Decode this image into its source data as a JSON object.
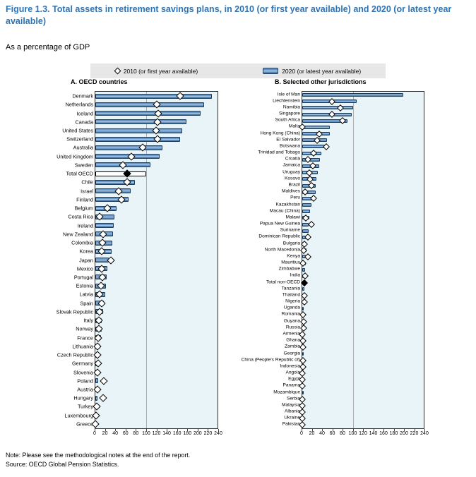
{
  "figure": {
    "title": "Figure 1.3. Total assets in retirement savings plans, in 2010 (or first year available) and 2020 (or latest year available)",
    "subtitle": "As a percentage of GDP",
    "note": "Note: Please see the methodological notes at the end of the report.",
    "source": "Source: OECD Global Pension Statistics."
  },
  "legend": {
    "items": [
      {
        "marker": "diamond",
        "label": "2010 (or first year available)"
      },
      {
        "marker": "bar",
        "label": "2020 (or latest year available)"
      }
    ]
  },
  "colors": {
    "title_blue": "#2E74B5",
    "bar_fill": "#5C8CC0",
    "bar_highlight": "#A8C7E3",
    "bar_border": "#1E3D5C",
    "total_bar_fill": "#FFFFFF",
    "diamond_fill": "#FFFFFF",
    "diamond_total_fill": "#000000",
    "plot_background": "#E9F4F9",
    "legend_background": "#E7E7E7",
    "gridline": "#ADADAD"
  },
  "chart_data": [
    {
      "type": "bar",
      "orientation": "horizontal",
      "title": "A. OECD countries",
      "xlabel": "",
      "xlim": [
        0,
        240
      ],
      "xticks": [
        0,
        20,
        40,
        60,
        80,
        100,
        120,
        140,
        160,
        180,
        200,
        220,
        240
      ],
      "gridline_x": 100,
      "series": [
        {
          "name": "2020 (or latest year available)",
          "style": "bar"
        },
        {
          "name": "2010 (or first year available)",
          "style": "diamond"
        }
      ],
      "rows": [
        {
          "label": "Denmark",
          "bar": 229,
          "diamond": 167
        },
        {
          "label": "Netherlands",
          "bar": 213,
          "diamond": 120
        },
        {
          "label": "Iceland",
          "bar": 207,
          "diamond": 123
        },
        {
          "label": "Canada",
          "bar": 179,
          "diamond": 122
        },
        {
          "label": "United States",
          "bar": 170,
          "diamond": 119
        },
        {
          "label": "Switzerland",
          "bar": 167,
          "diamond": 122
        },
        {
          "label": "Australia",
          "bar": 132,
          "diamond": 93
        },
        {
          "label": "United Kingdom",
          "bar": 126,
          "diamond": 71
        },
        {
          "label": "Sweden",
          "bar": 108,
          "diamond": 54
        },
        {
          "label": "Total OECD",
          "bar": 100,
          "diamond": 63,
          "total": true
        },
        {
          "label": "Chile",
          "bar": 77,
          "diamond": 62
        },
        {
          "label": "Israel",
          "bar": 70,
          "diamond": 46
        },
        {
          "label": "Finland",
          "bar": 65,
          "diamond": 52
        },
        {
          "label": "Belgium",
          "bar": 42,
          "diamond": 24
        },
        {
          "label": "Costa Rica",
          "bar": 37,
          "diamond": 8
        },
        {
          "label": "Ireland",
          "bar": 36,
          "diamond": null
        },
        {
          "label": "New Zealand",
          "bar": 34.5,
          "diamond": 15
        },
        {
          "label": "Colombia",
          "bar": 33,
          "diamond": 14
        },
        {
          "label": "Korea",
          "bar": 32,
          "diamond": 12
        },
        {
          "label": "Japan",
          "bar": 27,
          "diamond": 30
        },
        {
          "label": "Mexico",
          "bar": 23,
          "diamond": 13
        },
        {
          "label": "Portugal",
          "bar": 22,
          "diamond": 14
        },
        {
          "label": "Estonia",
          "bar": 21.5,
          "diamond": 10.5
        },
        {
          "label": "Latvia",
          "bar": 20,
          "diamond": 9
        },
        {
          "label": "Spain",
          "bar": 16.5,
          "diamond": 13
        },
        {
          "label": "Slovak Republic",
          "bar": 15,
          "diamond": 8.5
        },
        {
          "label": "Italy",
          "bar": 13,
          "diamond": 7
        },
        {
          "label": "Norway",
          "bar": 12,
          "diamond": 7.5
        },
        {
          "label": "France",
          "bar": 10.5,
          "diamond": 5.5
        },
        {
          "label": "Lithuania",
          "bar": 8.5,
          "diamond": 4.5
        },
        {
          "label": "Czech Republic",
          "bar": 7.5,
          "diamond": 4.5
        },
        {
          "label": "Germany",
          "bar": 7,
          "diamond": 5
        },
        {
          "label": "Slovenia",
          "bar": 6.5,
          "diamond": 4
        },
        {
          "label": "Poland",
          "bar": 5.6,
          "diamond": 16
        },
        {
          "label": "Austria",
          "bar": 5.5,
          "diamond": 4.8
        },
        {
          "label": "Hungary",
          "bar": 4.2,
          "diamond": 14.8
        },
        {
          "label": "Turkey",
          "bar": 3.3,
          "diamond": 2.3
        },
        {
          "label": "Luxembourg",
          "bar": 2.5,
          "diamond": 1.9
        },
        {
          "label": "Greece",
          "bar": 0.8,
          "diamond": 0.3
        }
      ]
    },
    {
      "type": "bar",
      "orientation": "horizontal",
      "title": "B. Selected other jurisdictions",
      "xlabel": "",
      "xlim": [
        0,
        240
      ],
      "xticks": [
        0,
        20,
        40,
        60,
        80,
        100,
        120,
        140,
        160,
        180,
        200,
        220,
        240
      ],
      "gridline_x": 100,
      "series": [
        {
          "name": "2020 (or latest year available)",
          "style": "bar"
        },
        {
          "name": "2010 (or first year available)",
          "style": "diamond"
        }
      ],
      "rows": [
        {
          "label": "Isle of Man",
          "bar": 199,
          "diamond": null
        },
        {
          "label": "Liechtenstein",
          "bar": 107,
          "diamond": 59
        },
        {
          "label": "Namibia",
          "bar": 101,
          "diamond": 76
        },
        {
          "label": "Singapore",
          "bar": 97,
          "diamond": 59
        },
        {
          "label": "South Africa",
          "bar": 89,
          "diamond": 79
        },
        {
          "label": "Malta",
          "bar": 54.5,
          "diamond": 0.6
        },
        {
          "label": "Hong Kong (China)",
          "bar": 54,
          "diamond": 33
        },
        {
          "label": "El Salvador",
          "bar": 49.5,
          "diamond": 29
        },
        {
          "label": "Botswana",
          "bar": 46,
          "diamond": 47.5
        },
        {
          "label": "Trinidad and Tobago",
          "bar": 38,
          "diamond": 22.5
        },
        {
          "label": "Croatia",
          "bar": 35.5,
          "diamond": 11
        },
        {
          "label": "Jamaica",
          "bar": 34,
          "diamond": 20.5
        },
        {
          "label": "Uruguay",
          "bar": 30,
          "diamond": 14.5
        },
        {
          "label": "Kosovo",
          "bar": 27.5,
          "diamond": 16
        },
        {
          "label": "Brazil",
          "bar": 27,
          "diamond": 18
        },
        {
          "label": "Maldives",
          "bar": 26.5,
          "diamond": 5.5
        },
        {
          "label": "Peru",
          "bar": 20.5,
          "diamond": 23
        },
        {
          "label": "Kazakhstan",
          "bar": 18,
          "diamond": null
        },
        {
          "label": "Macau (China)",
          "bar": 15.5,
          "diamond": null
        },
        {
          "label": "Malawi",
          "bar": 14.5,
          "diamond": 7.5
        },
        {
          "label": "Papua New Guinea",
          "bar": 12.5,
          "diamond": 18
        },
        {
          "label": "Suriname",
          "bar": 12.3,
          "diamond": null
        },
        {
          "label": "Dominican Republic",
          "bar": 9.5,
          "diamond": 11.5
        },
        {
          "label": "Bulgaria",
          "bar": 9,
          "diamond": 4
        },
        {
          "label": "North Macedonia",
          "bar": 8.5,
          "diamond": 3
        },
        {
          "label": "Kenya",
          "bar": 7.5,
          "diamond": 11
        },
        {
          "label": "Mauritius",
          "bar": 6.5,
          "diamond": 2
        },
        {
          "label": "Zimbabwe",
          "bar": 6,
          "diamond": null
        },
        {
          "label": "India",
          "bar": 4.8,
          "diamond": 5.2
        },
        {
          "label": "Total non-OECD",
          "bar": 4.7,
          "diamond": 4.3,
          "total": true
        },
        {
          "label": "Tanzania",
          "bar": 4.4,
          "diamond": null
        },
        {
          "label": "Thailand",
          "bar": 3.9,
          "diamond": 4.2
        },
        {
          "label": "Nigeria",
          "bar": 3.6,
          "diamond": 4
        },
        {
          "label": "Uganda",
          "bar": 3.4,
          "diamond": null
        },
        {
          "label": "Romania",
          "bar": 3.1,
          "diamond": 1
        },
        {
          "label": "Guyana",
          "bar": 2.6,
          "diamond": 3
        },
        {
          "label": "Russia",
          "bar": 2.3,
          "diamond": 3
        },
        {
          "label": "Armenia",
          "bar": 2.2,
          "diamond": 0.4
        },
        {
          "label": "Ghana",
          "bar": 2,
          "diamond": 1
        },
        {
          "label": "Zambia",
          "bar": 1.8,
          "diamond": 1
        },
        {
          "label": "Georgia",
          "bar": 1.5,
          "diamond": null
        },
        {
          "label": "China (People's Republic of)",
          "bar": 1.3,
          "diamond": 0.8
        },
        {
          "label": "Indonesia",
          "bar": 1.2,
          "diamond": 0.7
        },
        {
          "label": "Angola",
          "bar": 1,
          "diamond": 0.6
        },
        {
          "label": "Egypt",
          "bar": 0.9,
          "diamond": 0.5
        },
        {
          "label": "Panama",
          "bar": 0.8,
          "diamond": 0.5
        },
        {
          "label": "Mozambique",
          "bar": 0.7,
          "diamond": null
        },
        {
          "label": "Serbia",
          "bar": 0.6,
          "diamond": 0.4
        },
        {
          "label": "Malaysia",
          "bar": 0.5,
          "diamond": 0.4
        },
        {
          "label": "Albania",
          "bar": 0.4,
          "diamond": 0.3
        },
        {
          "label": "Ukraine",
          "bar": 0.3,
          "diamond": 0.3
        },
        {
          "label": "Pakistan",
          "bar": 0.2,
          "diamond": 0.2
        }
      ]
    }
  ]
}
